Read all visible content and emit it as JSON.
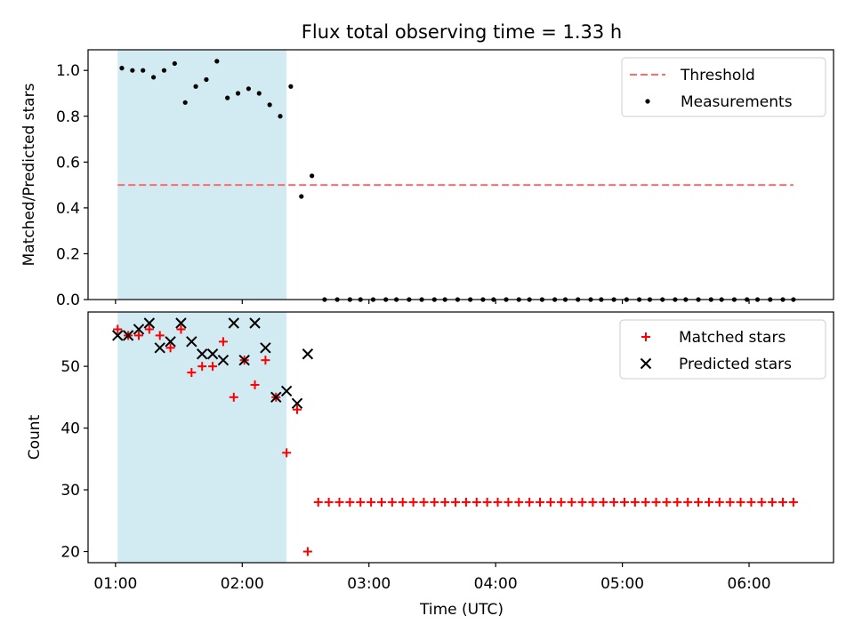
{
  "chart_data": [
    {
      "type": "scatter",
      "title": "Flux total observing time = 1.33 h",
      "ylabel": "Matched/Predicted stars",
      "xlim": [
        "00:47",
        "06:40"
      ],
      "ylim": [
        0.0,
        1.09
      ],
      "yticks": [
        "0.0",
        "0.2",
        "0.4",
        "0.6",
        "0.8",
        "1.0"
      ],
      "grid": false,
      "legend_position": "top-right",
      "shaded_interval": {
        "from": "01:01",
        "to": "02:21",
        "color": "#add8e6"
      },
      "threshold": {
        "name": "Threshold",
        "value": 0.5,
        "from": "01:01",
        "to": "06:21",
        "color": "#ff6b6b",
        "style": "dashed"
      },
      "series": [
        {
          "name": "Measurements",
          "color": "#000000",
          "marker": "dot",
          "x": [
            "01:03",
            "01:08",
            "01:13",
            "01:18",
            "01:23",
            "01:28",
            "01:33",
            "01:38",
            "01:43",
            "01:48",
            "01:53",
            "01:58",
            "02:03",
            "02:08",
            "02:13",
            "02:18",
            "02:23",
            "02:28",
            "02:33",
            "02:39",
            "02:45",
            "02:51",
            "02:56",
            "03:02",
            "03:08",
            "03:13",
            "03:19",
            "03:25",
            "03:31",
            "03:36",
            "03:42",
            "03:48",
            "03:54",
            "03:59",
            "04:05",
            "04:11",
            "04:16",
            "04:22",
            "04:28",
            "04:33",
            "04:39",
            "04:45",
            "04:50",
            "04:56",
            "05:02",
            "05:08",
            "05:13",
            "05:19",
            "05:25",
            "05:30",
            "05:36",
            "05:42",
            "05:47",
            "05:53",
            "05:59",
            "06:04",
            "06:10",
            "06:16",
            "06:21"
          ],
          "y": [
            1.01,
            1.0,
            1.0,
            0.97,
            1.0,
            1.03,
            0.86,
            0.93,
            0.96,
            1.04,
            0.88,
            0.9,
            0.92,
            0.9,
            0.85,
            0.8,
            0.93,
            0.45,
            0.54,
            0,
            0,
            0,
            0,
            0,
            0,
            0,
            0,
            0,
            0,
            0,
            0,
            0,
            0,
            0,
            0,
            0,
            0,
            0,
            0,
            0,
            0,
            0,
            0,
            0,
            0,
            0,
            0,
            0,
            0,
            0,
            0,
            0,
            0,
            0,
            0,
            0,
            0,
            0,
            0
          ]
        }
      ]
    },
    {
      "type": "scatter",
      "xlabel": "Time (UTC)",
      "ylabel": "Count",
      "xlim": [
        "00:47",
        "06:40"
      ],
      "ylim": [
        18.2,
        58.8
      ],
      "xticks": [
        "01:00",
        "02:00",
        "03:00",
        "04:00",
        "05:00",
        "06:00"
      ],
      "yticks": [
        "20",
        "30",
        "40",
        "50"
      ],
      "grid": false,
      "legend_position": "top-right",
      "shaded_interval": {
        "from": "01:01",
        "to": "02:21",
        "color": "#add8e6"
      },
      "series": [
        {
          "name": "Matched stars",
          "color": "#ff0000",
          "marker": "plus",
          "x": [
            "01:01",
            "01:06",
            "01:11",
            "01:16",
            "01:21",
            "01:26",
            "01:31",
            "01:36",
            "01:41",
            "01:46",
            "01:51",
            "01:56",
            "02:01",
            "02:06",
            "02:11",
            "02:16",
            "02:21",
            "02:26",
            "02:31",
            "02:36",
            "02:41",
            "02:46",
            "02:51",
            "02:56",
            "03:01",
            "03:06",
            "03:11",
            "03:16",
            "03:21",
            "03:26",
            "03:31",
            "03:36",
            "03:41",
            "03:46",
            "03:51",
            "03:56",
            "04:01",
            "04:06",
            "04:11",
            "04:16",
            "04:21",
            "04:26",
            "04:31",
            "04:36",
            "04:41",
            "04:46",
            "04:51",
            "04:56",
            "05:01",
            "05:06",
            "05:11",
            "05:16",
            "05:21",
            "05:26",
            "05:31",
            "05:36",
            "05:41",
            "05:46",
            "05:51",
            "05:56",
            "06:01",
            "06:06",
            "06:11",
            "06:16",
            "06:21"
          ],
          "y": [
            56,
            55,
            55,
            56,
            55,
            53,
            56,
            49,
            50,
            50,
            54,
            45,
            51,
            47,
            51,
            45,
            36,
            43,
            20,
            28,
            28,
            28,
            28,
            28,
            28,
            28,
            28,
            28,
            28,
            28,
            28,
            28,
            28,
            28,
            28,
            28,
            28,
            28,
            28,
            28,
            28,
            28,
            28,
            28,
            28,
            28,
            28,
            28,
            28,
            28,
            28,
            28,
            28,
            28,
            28,
            28,
            28,
            28,
            28,
            28,
            28,
            28,
            28,
            28,
            28
          ]
        },
        {
          "name": "Predicted stars",
          "color": "#000000",
          "marker": "x",
          "x": [
            "01:01",
            "01:06",
            "01:11",
            "01:16",
            "01:21",
            "01:26",
            "01:31",
            "01:36",
            "01:41",
            "01:46",
            "01:51",
            "01:56",
            "02:01",
            "02:06",
            "02:11",
            "02:16",
            "02:21",
            "02:26",
            "02:31"
          ],
          "y": [
            55,
            55,
            56,
            57,
            53,
            54,
            57,
            54,
            52,
            52,
            51,
            57,
            51,
            57,
            53,
            45,
            46,
            44,
            52
          ]
        }
      ]
    }
  ]
}
